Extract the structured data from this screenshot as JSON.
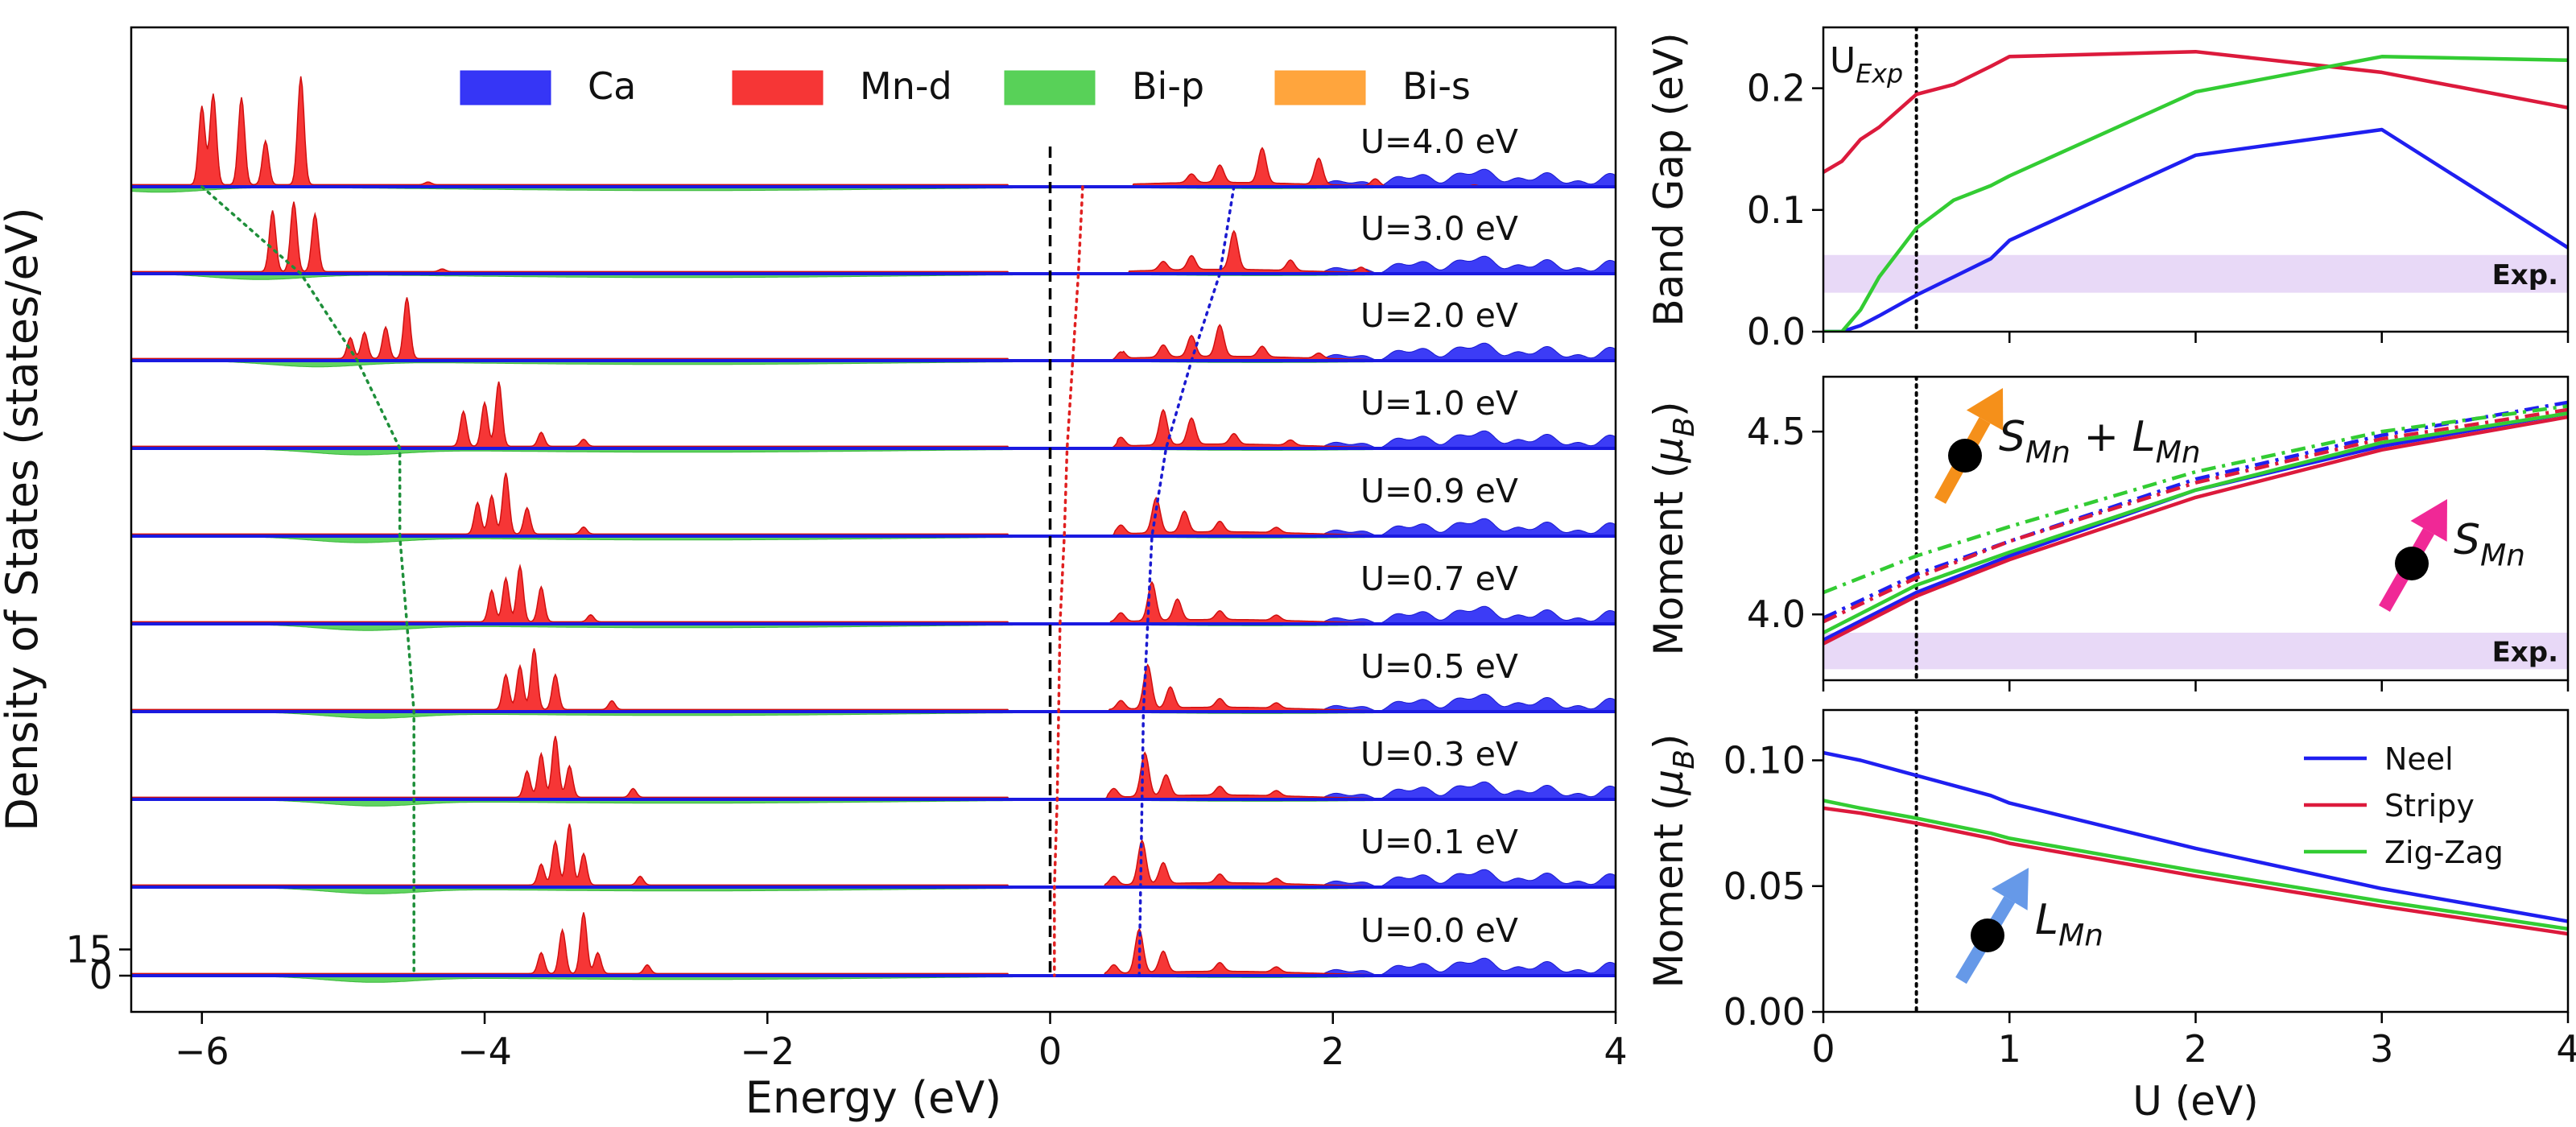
{
  "chart_data": [
    {
      "panel": "dos",
      "type": "area",
      "title": "",
      "xlabel": "Energy (eV)",
      "ylabel": "Density of States (states/eV)",
      "xlim": [
        -6.5,
        4
      ],
      "x_ticks": [
        -6,
        -4,
        -2,
        0,
        2,
        4
      ],
      "x_tick_labels": [
        "−6",
        "−4",
        "−2",
        "0",
        "2",
        "4"
      ],
      "y_ticks": [
        0,
        15
      ],
      "y_tick_labels": [
        "0",
        "15"
      ],
      "legend": {
        "placement": "top",
        "entries": [
          {
            "label": "Ca",
            "color": "#2b2bf5"
          },
          {
            "label": "Mn-d",
            "color": "#f52b2b"
          },
          {
            "label": "Bi-p",
            "color": "#4fcf4f"
          },
          {
            "label": "Bi-s",
            "color": "#ffa033"
          }
        ]
      },
      "fermi_level_ev": 0,
      "series_labels": [
        "U=4.0 eV",
        "U=3.0 eV",
        "U=2.0 eV",
        "U=1.0 eV",
        "U=0.9 eV",
        "U=0.7 eV",
        "U=0.5 eV",
        "U=0.3 eV",
        "U=0.1 eV",
        "U=0.0 eV"
      ],
      "u_values": [
        4.0,
        3.0,
        2.0,
        1.0,
        0.9,
        0.7,
        0.5,
        0.3,
        0.1,
        0.0
      ],
      "trace_green_peak_ev": [
        -6.0,
        -5.3,
        -4.9,
        -4.6,
        -4.6,
        -4.55,
        -4.5,
        -4.5,
        -4.5,
        -4.5
      ],
      "trace_red_gap_ev": [
        0.23,
        0.2,
        0.16,
        0.12,
        0.1,
        0.07,
        0.06,
        0.05,
        0.03,
        0.03
      ],
      "trace_blue_edge_ev": [
        1.3,
        1.2,
        1.0,
        0.82,
        0.72,
        0.69,
        0.66,
        0.65,
        0.64,
        0.63
      ],
      "mn_peaks": [
        {
          "U": "4.0",
          "occ": [
            [
              -6.0,
              45
            ],
            [
              -5.92,
              52
            ],
            [
              -5.72,
              50
            ],
            [
              -5.55,
              25
            ],
            [
              -5.3,
              62
            ],
            [
              -4.4,
              1.5
            ]
          ],
          "unocc": [
            [
              1.0,
              5
            ],
            [
              1.2,
              10
            ],
            [
              1.5,
              20
            ],
            [
              1.9,
              15
            ],
            [
              2.3,
              4
            ],
            [
              3.0,
              1
            ]
          ]
        },
        {
          "U": "3.0",
          "occ": [
            [
              -5.5,
              35
            ],
            [
              -5.35,
              40
            ],
            [
              -5.2,
              33
            ],
            [
              -4.3,
              1.5
            ]
          ],
          "unocc": [
            [
              0.8,
              5
            ],
            [
              1.0,
              8
            ],
            [
              1.3,
              22
            ],
            [
              1.7,
              6
            ],
            [
              2.2,
              3
            ]
          ]
        },
        {
          "U": "2.0",
          "occ": [
            [
              -4.95,
              12
            ],
            [
              -4.85,
              15
            ],
            [
              -4.7,
              18
            ],
            [
              -4.55,
              35
            ]
          ],
          "unocc": [
            [
              0.5,
              5
            ],
            [
              0.8,
              7
            ],
            [
              1.0,
              12
            ],
            [
              1.2,
              18
            ],
            [
              1.5,
              6
            ],
            [
              1.9,
              3
            ]
          ]
        },
        {
          "U": "1.0",
          "occ": [
            [
              -4.15,
              20
            ],
            [
              -4.0,
              25
            ],
            [
              -3.9,
              37
            ],
            [
              -3.6,
              8
            ],
            [
              -3.3,
              4
            ]
          ],
          "unocc": [
            [
              0.5,
              5
            ],
            [
              0.8,
              20
            ],
            [
              1.0,
              15
            ],
            [
              1.3,
              6
            ],
            [
              1.7,
              3
            ]
          ]
        },
        {
          "U": "0.9",
          "occ": [
            [
              -4.05,
              18
            ],
            [
              -3.95,
              22
            ],
            [
              -3.85,
              35
            ],
            [
              -3.7,
              15
            ],
            [
              -3.3,
              4
            ]
          ],
          "unocc": [
            [
              0.5,
              5
            ],
            [
              0.75,
              20
            ],
            [
              0.95,
              12
            ],
            [
              1.2,
              6
            ],
            [
              1.6,
              3
            ]
          ]
        },
        {
          "U": "0.7",
          "occ": [
            [
              -3.95,
              18
            ],
            [
              -3.85,
              25
            ],
            [
              -3.75,
              32
            ],
            [
              -3.6,
              20
            ],
            [
              -3.25,
              4
            ]
          ],
          "unocc": [
            [
              0.5,
              5
            ],
            [
              0.72,
              22
            ],
            [
              0.9,
              12
            ],
            [
              1.2,
              5
            ],
            [
              1.6,
              3
            ]
          ]
        },
        {
          "U": "0.5",
          "occ": [
            [
              -3.85,
              20
            ],
            [
              -3.75,
              25
            ],
            [
              -3.65,
              35
            ],
            [
              -3.5,
              20
            ],
            [
              -3.1,
              5
            ]
          ],
          "unocc": [
            [
              0.5,
              5
            ],
            [
              0.69,
              25
            ],
            [
              0.85,
              12
            ],
            [
              1.2,
              5
            ],
            [
              1.6,
              3
            ]
          ]
        },
        {
          "U": "0.3",
          "occ": [
            [
              -3.7,
              15
            ],
            [
              -3.6,
              25
            ],
            [
              -3.5,
              35
            ],
            [
              -3.4,
              18
            ],
            [
              -2.95,
              5
            ]
          ],
          "unocc": [
            [
              0.45,
              5
            ],
            [
              0.67,
              25
            ],
            [
              0.82,
              12
            ],
            [
              1.2,
              5
            ],
            [
              1.6,
              3
            ]
          ]
        },
        {
          "U": "0.1",
          "occ": [
            [
              -3.6,
              12
            ],
            [
              -3.5,
              25
            ],
            [
              -3.4,
              35
            ],
            [
              -3.3,
              18
            ],
            [
              -2.9,
              5
            ]
          ],
          "unocc": [
            [
              0.45,
              5
            ],
            [
              0.65,
              25
            ],
            [
              0.8,
              12
            ],
            [
              1.2,
              5
            ],
            [
              1.6,
              3
            ]
          ]
        },
        {
          "U": "0.0",
          "occ": [
            [
              -3.6,
              12
            ],
            [
              -3.45,
              25
            ],
            [
              -3.3,
              35
            ],
            [
              -3.2,
              12
            ],
            [
              -2.85,
              5
            ]
          ],
          "unocc": [
            [
              0.45,
              5
            ],
            [
              0.63,
              25
            ],
            [
              0.8,
              12
            ],
            [
              1.2,
              5
            ],
            [
              1.6,
              3
            ]
          ]
        }
      ]
    },
    {
      "panel": "band_gap",
      "type": "line",
      "xlabel": "",
      "ylabel": "Band Gap (eV)",
      "xlim": [
        0,
        4
      ],
      "ylim": [
        0,
        0.25
      ],
      "x_ticks": [
        0,
        1,
        2,
        3,
        4
      ],
      "y_ticks": [
        0,
        0.1,
        0.2
      ],
      "y_tick_labels": [
        "0.0",
        "0.1",
        "0.2"
      ],
      "u_exp": 0.5,
      "u_exp_label": "U",
      "u_exp_sub": "Exp",
      "exp_band": [
        0.032,
        0.063
      ],
      "exp_label": "Exp.",
      "series": [
        {
          "name": "Neel",
          "color": "#1f1ff0",
          "x": [
            0,
            0.1,
            0.2,
            0.3,
            0.5,
            0.7,
            0.9,
            1.0,
            2.0,
            3.0,
            4.0
          ],
          "y": [
            0,
            0,
            0.005,
            0.013,
            0.03,
            0.045,
            0.06,
            0.075,
            0.145,
            0.166,
            0.069
          ]
        },
        {
          "name": "Stripy",
          "color": "#dc1a3c",
          "x": [
            0,
            0.1,
            0.2,
            0.3,
            0.5,
            0.7,
            0.9,
            1.0,
            2.0,
            3.0,
            4.0
          ],
          "y": [
            0.131,
            0.14,
            0.158,
            0.168,
            0.195,
            0.203,
            0.218,
            0.226,
            0.23,
            0.213,
            0.184
          ]
        },
        {
          "name": "Zig-Zag",
          "color": "#33cc33",
          "x": [
            0,
            0.1,
            0.2,
            0.3,
            0.5,
            0.7,
            0.9,
            1.0,
            2.0,
            3.0,
            4.0
          ],
          "y": [
            0,
            0,
            0.018,
            0.045,
            0.085,
            0.108,
            0.12,
            0.128,
            0.197,
            0.226,
            0.223
          ]
        }
      ]
    },
    {
      "panel": "total_moment",
      "type": "line",
      "xlabel": "",
      "ylabel": "Moment (μ_B)",
      "ylabel_main": "Moment (",
      "ylabel_mu": "μ",
      "ylabel_sub": "B",
      "ylabel_close": ")",
      "xlim": [
        0,
        4
      ],
      "ylim": [
        3.82,
        4.65
      ],
      "x_ticks": [
        0,
        1,
        2,
        3,
        4
      ],
      "y_ticks": [
        4.0,
        4.5
      ],
      "y_tick_labels": [
        "4.0",
        "4.5"
      ],
      "u_exp": 0.5,
      "exp_band": [
        3.85,
        3.95
      ],
      "exp_label": "Exp.",
      "annotations": [
        {
          "text": "S",
          "sub": "Mn",
          "extra": " + L",
          "extra_sub": "Mn",
          "color": "#f5901a"
        },
        {
          "text": "S",
          "sub": "Mn",
          "color": "#f02896"
        }
      ],
      "series": [
        {
          "name": "Neel S+L",
          "color": "#1f1ff0",
          "style": "dashdot",
          "x": [
            0,
            0.5,
            1,
            2,
            3,
            4
          ],
          "y": [
            3.99,
            4.11,
            4.2,
            4.37,
            4.49,
            4.58
          ]
        },
        {
          "name": "Stripy S+L",
          "color": "#dc1a3c",
          "style": "dashdot",
          "x": [
            0,
            0.5,
            1,
            2,
            3,
            4
          ],
          "y": [
            3.98,
            4.1,
            4.2,
            4.36,
            4.48,
            4.56
          ]
        },
        {
          "name": "Zig-Zag S+L",
          "color": "#33cc33",
          "style": "dashdot",
          "x": [
            0,
            0.5,
            1,
            2,
            3,
            4
          ],
          "y": [
            4.06,
            4.16,
            4.24,
            4.39,
            4.5,
            4.57
          ]
        },
        {
          "name": "Neel S",
          "color": "#1f1ff0",
          "style": "solid",
          "x": [
            0,
            0.5,
            1,
            2,
            3,
            4
          ],
          "y": [
            3.93,
            4.06,
            4.16,
            4.34,
            4.46,
            4.55
          ]
        },
        {
          "name": "Stripy S",
          "color": "#dc1a3c",
          "style": "solid",
          "x": [
            0,
            0.5,
            1,
            2,
            3,
            4
          ],
          "y": [
            3.92,
            4.05,
            4.15,
            4.32,
            4.45,
            4.54
          ]
        },
        {
          "name": "Zig-Zag S",
          "color": "#33cc33",
          "style": "solid",
          "x": [
            0,
            0.5,
            1,
            2,
            3,
            4
          ],
          "y": [
            3.95,
            4.08,
            4.17,
            4.34,
            4.47,
            4.55
          ]
        }
      ]
    },
    {
      "panel": "orbital_moment",
      "type": "line",
      "xlabel": "U (eV)",
      "ylabel": "Moment (μ_B)",
      "ylabel_main": "Moment (",
      "ylabel_mu": "μ",
      "ylabel_sub": "B",
      "ylabel_close": ")",
      "xlim": [
        0,
        4
      ],
      "ylim": [
        0,
        0.12
      ],
      "x_ticks": [
        0,
        1,
        2,
        3,
        4
      ],
      "x_tick_labels": [
        "0",
        "1",
        "2",
        "3",
        "4"
      ],
      "y_ticks": [
        0,
        0.05,
        0.1
      ],
      "y_tick_labels": [
        "0.00",
        "0.05",
        "0.10"
      ],
      "u_exp": 0.5,
      "annotations": [
        {
          "text": "L",
          "sub": "Mn",
          "color": "#6699e8"
        }
      ],
      "legend": {
        "placement": "top-right",
        "entries": [
          "Neel",
          "Stripy",
          "Zig-Zag"
        ]
      },
      "series": [
        {
          "name": "Neel",
          "color": "#1f1ff0",
          "x": [
            0,
            0.2,
            0.5,
            0.7,
            0.9,
            1.0,
            2.0,
            3.0,
            4.0
          ],
          "y": [
            0.103,
            0.1,
            0.094,
            0.09,
            0.086,
            0.083,
            0.065,
            0.049,
            0.036
          ]
        },
        {
          "name": "Stripy",
          "color": "#dc1a3c",
          "x": [
            0,
            0.2,
            0.5,
            0.7,
            0.9,
            1.0,
            2.0,
            3.0,
            4.0
          ],
          "y": [
            0.081,
            0.079,
            0.075,
            0.072,
            0.069,
            0.067,
            0.054,
            0.042,
            0.031
          ]
        },
        {
          "name": "Zig-Zag",
          "color": "#33cc33",
          "x": [
            0,
            0.2,
            0.5,
            0.7,
            0.9,
            1.0,
            2.0,
            3.0,
            4.0
          ],
          "y": [
            0.084,
            0.081,
            0.077,
            0.074,
            0.071,
            0.069,
            0.056,
            0.044,
            0.033
          ]
        }
      ]
    }
  ]
}
